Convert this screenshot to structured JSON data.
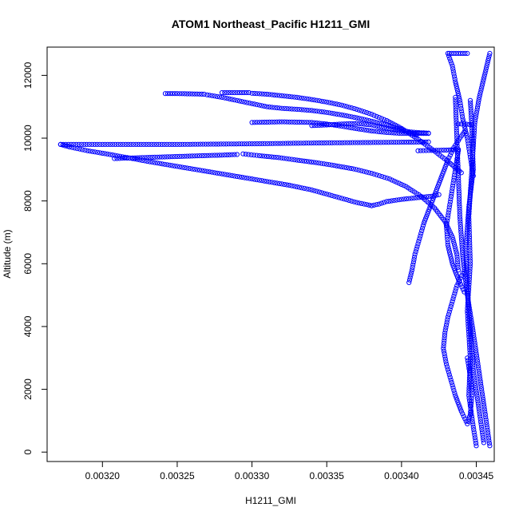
{
  "chart_data": {
    "type": "scatter",
    "title": "ATOM1 Northeast_Pacific H1211_GMI",
    "xlabel": "H1211_GMI",
    "ylabel": "Altitude (m)",
    "xlim": [
      0.003163,
      0.003462
    ],
    "ylim": [
      -300,
      12900
    ],
    "x_ticks": [
      0.0032,
      0.00325,
      0.0033,
      0.00335,
      0.0034,
      0.00345
    ],
    "x_tick_labels": [
      "0.00320",
      "0.00325",
      "0.00330",
      "0.00335",
      "0.00340",
      "0.00345"
    ],
    "y_ticks": [
      0,
      2000,
      4000,
      6000,
      8000,
      10000,
      12000
    ],
    "y_tick_labels": [
      "0",
      "2000",
      "4000",
      "6000",
      "8000",
      "10000",
      "12000"
    ],
    "marker": "open-circle",
    "color": "#0000ff",
    "grid": false,
    "segments": [
      {
        "x": [
          0.00345,
          0.003448,
          0.003445,
          0.003446,
          0.003444,
          0.003446,
          0.003445,
          0.003447,
          0.003449,
          0.003452,
          0.003459
        ],
        "y": [
          200,
          800,
          1800,
          3000,
          4500,
          6000,
          7500,
          9000,
          10500,
          11300,
          12700
        ]
      },
      {
        "x": [
          0.003459,
          0.003456,
          0.003452,
          0.003448,
          0.003444,
          0.003441,
          0.003439,
          0.003438,
          0.003437,
          0.003436
        ],
        "y": [
          200,
          1200,
          2500,
          3800,
          5000,
          6200,
          7500,
          8800,
          10000,
          11300
        ]
      },
      {
        "x": [
          0.003455,
          0.003452,
          0.003448,
          0.003446,
          0.003444,
          0.003443,
          0.003445,
          0.003448,
          0.003447,
          0.003446
        ],
        "y": [
          300,
          1300,
          2600,
          3900,
          5200,
          6500,
          7800,
          9000,
          10400,
          11200
        ]
      },
      {
        "x": [
          0.003441,
          0.003437,
          0.003434,
          0.003431,
          0.003429,
          0.003428,
          0.00343,
          0.003433,
          0.003436,
          0.00344,
          0.003444,
          0.003446,
          0.003447,
          0.003446,
          0.003444
        ],
        "y": [
          5700,
          5300,
          4800,
          4300,
          3800,
          3300,
          2800,
          2300,
          1800,
          1300,
          900,
          1200,
          1800,
          2400,
          3000
        ]
      },
      {
        "x": [
          0.003438,
          0.003436,
          0.003434,
          0.003432,
          0.00343,
          0.003431,
          0.003434,
          0.003438,
          0.003442
        ],
        "y": [
          9600,
          9000,
          8400,
          7800,
          7200,
          6600,
          6000,
          5500,
          5100
        ]
      },
      {
        "x": [
          0.003431,
          0.003434,
          0.003436,
          0.003439,
          0.003441,
          0.003444,
          0.003446,
          0.003448
        ],
        "y": [
          12700,
          12300,
          11800,
          11200,
          10600,
          10000,
          9400,
          8800
        ]
      },
      {
        "x": [
          0.003442,
          0.003439,
          0.003435,
          0.003431,
          0.003427,
          0.003423,
          0.003419,
          0.003415,
          0.003412,
          0.003409,
          0.003407,
          0.003405
        ],
        "y": [
          10200,
          10000,
          9700,
          9300,
          8800,
          8300,
          7800,
          7300,
          6800,
          6300,
          5800,
          5400
        ]
      },
      {
        "x": [
          0.003172,
          0.0032,
          0.00325,
          0.0033,
          0.00335,
          0.0034,
          0.003418
        ],
        "y": [
          9800,
          9800,
          9800,
          9820,
          9850,
          9870,
          9880
        ]
      },
      {
        "x": [
          0.003172,
          0.003178,
          0.00319,
          0.003205,
          0.00322,
          0.003235,
          0.00325,
          0.003265,
          0.00328,
          0.003295,
          0.00331,
          0.003325,
          0.00334,
          0.003355,
          0.00337,
          0.00338
        ],
        "y": [
          9800,
          9720,
          9600,
          9480,
          9350,
          9220,
          9100,
          8980,
          8860,
          8740,
          8620,
          8500,
          8350,
          8150,
          7950,
          7850
        ]
      },
      {
        "x": [
          0.003208,
          0.00322,
          0.00324,
          0.00326,
          0.00328,
          0.00329
        ],
        "y": [
          9350,
          9370,
          9400,
          9430,
          9460,
          9480
        ]
      },
      {
        "x": [
          0.003294,
          0.003305,
          0.003318,
          0.00333,
          0.003343,
          0.003355,
          0.003368,
          0.00338,
          0.003392,
          0.003403,
          0.003413,
          0.003422,
          0.003429,
          0.003434,
          0.003437,
          0.003438
        ],
        "y": [
          9500,
          9440,
          9380,
          9300,
          9220,
          9130,
          9020,
          8880,
          8700,
          8460,
          8150,
          7780,
          7350,
          6850,
          6300,
          5800
        ]
      },
      {
        "x": [
          0.00338,
          0.003385,
          0.00339,
          0.0034,
          0.00341,
          0.00342,
          0.003425
        ],
        "y": [
          7850,
          7900,
          7980,
          8050,
          8100,
          8150,
          8200
        ]
      },
      {
        "x": [
          0.003411,
          0.00342,
          0.00343,
          0.003438
        ],
        "y": [
          9600,
          9610,
          9620,
          9640
        ]
      },
      {
        "x": [
          0.0033,
          0.00331,
          0.00332,
          0.00333,
          0.00334,
          0.00335,
          0.00336,
          0.00337,
          0.00338,
          0.00339,
          0.0034,
          0.00341,
          0.003418
        ],
        "y": [
          10500,
          10510,
          10520,
          10510,
          10500,
          10450,
          10380,
          10300,
          10230,
          10180,
          10150,
          10150,
          10150
        ]
      },
      {
        "x": [
          0.00334,
          0.00335,
          0.00336,
          0.00337,
          0.00338,
          0.00339,
          0.0034,
          0.00341,
          0.003418
        ],
        "y": [
          10400,
          10420,
          10450,
          10470,
          10420,
          10320,
          10230,
          10180,
          10160
        ]
      },
      {
        "x": [
          0.003242,
          0.00325,
          0.00326,
          0.003268
        ],
        "y": [
          11420,
          11420,
          11410,
          11400
        ]
      },
      {
        "x": [
          0.00328,
          0.00329,
          0.003298
        ],
        "y": [
          11450,
          11450,
          11450
        ]
      },
      {
        "x": [
          0.0033,
          0.00331,
          0.00332,
          0.00333,
          0.00334,
          0.00335,
          0.00336,
          0.00337,
          0.00338,
          0.00339,
          0.0034,
          0.00341,
          0.00342,
          0.00343,
          0.00344
        ],
        "y": [
          11430,
          11400,
          11350,
          11300,
          11230,
          11150,
          11050,
          10920,
          10760,
          10560,
          10310,
          10000,
          9660,
          9300,
          8900
        ]
      },
      {
        "x": [
          0.00327,
          0.00328,
          0.00329,
          0.0033,
          0.00331,
          0.00332,
          0.00333,
          0.00334,
          0.00335,
          0.00336,
          0.00337,
          0.00338,
          0.00339,
          0.0034,
          0.00341
        ],
        "y": [
          11380,
          11300,
          11200,
          11100,
          11000,
          10950,
          10920,
          10880,
          10820,
          10740,
          10650,
          10540,
          10420,
          10280,
          10100
        ]
      },
      {
        "x": [
          0.003432,
          0.003438,
          0.003444
        ],
        "y": [
          12700,
          12700,
          12700
        ]
      },
      {
        "x": [
          0.003438,
          0.003442,
          0.003447
        ],
        "y": [
          10450,
          10450,
          10430
        ]
      }
    ]
  }
}
